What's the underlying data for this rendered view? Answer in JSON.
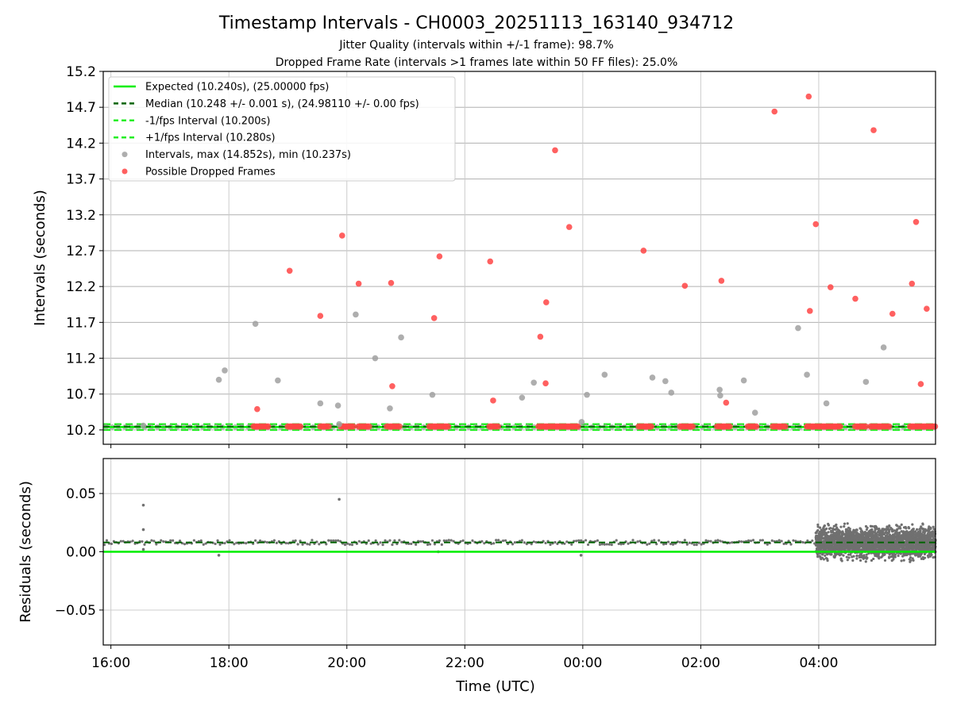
{
  "title": "Timestamp Intervals - CH0003_20251113_163140_934712",
  "subtitle_jitter": "Jitter Quality (intervals within +/-1 frame): 98.7%",
  "subtitle_dropped": "Dropped Frame Rate (intervals >1 frames late within 50 FF files): 25.0%",
  "colors": {
    "expected": "#00ee00",
    "median": "#006400",
    "interval_fps": "#22ee22",
    "normal_points": "#a0a0a0",
    "dropped_points": "#ff4444",
    "residual_points": "#707070",
    "grid": "#b0b0b0"
  },
  "chart_data": [
    {
      "type": "scatter",
      "panel": "top",
      "ylabel": "Intervals (seconds)",
      "ylim": [
        10.0,
        15.2
      ],
      "yticks": [
        "10.2",
        "10.7",
        "11.2",
        "11.7",
        "12.2",
        "12.7",
        "13.2",
        "13.7",
        "14.2",
        "14.7",
        "15.2"
      ],
      "xlim_hours": [
        15.87,
        29.98
      ],
      "grid": true,
      "legend_position": "upper-left",
      "legend": [
        "Expected (10.240s), (25.00000 fps)",
        "Median (10.248 +/- 0.001 s), (24.98110 +/- 0.00 fps)",
        "-1/fps Interval (10.200s)",
        "+1/fps Interval (10.280s)",
        "Intervals, max (14.852s), min (10.237s)",
        "Possible Dropped Frames"
      ],
      "reference_lines": {
        "expected": 10.24,
        "median": 10.248,
        "minus_one_frame": 10.2,
        "plus_one_frame": 10.28
      },
      "series": [
        {
          "name": "Intervals, max (14.852s), min (10.237s)",
          "points": [
            [
              16.55,
              10.26
            ],
            [
              17.83,
              10.9
            ],
            [
              17.93,
              11.03
            ],
            [
              18.45,
              11.68
            ],
            [
              18.83,
              10.89
            ],
            [
              19.55,
              10.57
            ],
            [
              19.85,
              10.54
            ],
            [
              19.87,
              10.28
            ],
            [
              20.15,
              11.81
            ],
            [
              20.48,
              11.2
            ],
            [
              20.73,
              10.5
            ],
            [
              20.92,
              11.49
            ],
            [
              21.45,
              10.69
            ],
            [
              22.97,
              10.65
            ],
            [
              23.17,
              10.86
            ],
            [
              23.98,
              10.31
            ],
            [
              24.07,
              10.69
            ],
            [
              24.37,
              10.97
            ],
            [
              25.18,
              10.93
            ],
            [
              25.4,
              10.88
            ],
            [
              25.5,
              10.72
            ],
            [
              26.32,
              10.76
            ],
            [
              26.33,
              10.68
            ],
            [
              26.73,
              10.89
            ],
            [
              26.92,
              10.44
            ],
            [
              27.65,
              11.62
            ],
            [
              27.8,
              10.97
            ],
            [
              28.13,
              10.57
            ],
            [
              28.8,
              10.87
            ],
            [
              29.1,
              11.35
            ]
          ]
        },
        {
          "name": "Possible Dropped Frames",
          "points": [
            [
              18.48,
              10.49
            ],
            [
              19.03,
              12.42
            ],
            [
              19.55,
              11.79
            ],
            [
              19.92,
              12.91
            ],
            [
              20.2,
              12.24
            ],
            [
              20.75,
              12.25
            ],
            [
              20.77,
              10.81
            ],
            [
              21.48,
              11.76
            ],
            [
              21.57,
              12.62
            ],
            [
              22.43,
              12.55
            ],
            [
              22.48,
              10.61
            ],
            [
              23.28,
              11.5
            ],
            [
              23.37,
              10.85
            ],
            [
              23.38,
              11.98
            ],
            [
              23.53,
              14.1
            ],
            [
              23.77,
              13.03
            ],
            [
              25.03,
              12.7
            ],
            [
              25.73,
              12.21
            ],
            [
              26.35,
              12.28
            ],
            [
              26.43,
              10.58
            ],
            [
              27.25,
              14.64
            ],
            [
              27.83,
              14.85
            ],
            [
              27.85,
              11.86
            ],
            [
              27.95,
              13.07
            ],
            [
              28.2,
              12.19
            ],
            [
              28.62,
              12.03
            ],
            [
              28.93,
              14.38
            ],
            [
              29.25,
              11.82
            ],
            [
              29.58,
              12.24
            ],
            [
              29.65,
              13.1
            ],
            [
              29.73,
              10.84
            ],
            [
              29.83,
              11.89
            ]
          ]
        }
      ],
      "dropped_frame_clusters_at_baseline_hours": [
        [
          18.42,
          18.68
        ],
        [
          19.0,
          19.22
        ],
        [
          19.55,
          19.72
        ],
        [
          19.9,
          20.12
        ],
        [
          20.2,
          20.38
        ],
        [
          20.68,
          20.9
        ],
        [
          21.4,
          21.72
        ],
        [
          22.42,
          22.58
        ],
        [
          23.25,
          23.95
        ],
        [
          24.95,
          25.17
        ],
        [
          25.65,
          25.87
        ],
        [
          26.28,
          26.52
        ],
        [
          26.8,
          26.97
        ],
        [
          27.22,
          27.45
        ],
        [
          27.8,
          28.37
        ],
        [
          28.62,
          28.82
        ],
        [
          28.88,
          29.1
        ],
        [
          29.12,
          29.22
        ],
        [
          29.55,
          29.98
        ]
      ]
    },
    {
      "type": "scatter",
      "panel": "bottom",
      "ylabel": "Residuals (seconds)",
      "xlabel": "Time (UTC)",
      "ylim": [
        -0.08,
        0.08
      ],
      "yticks": [
        "0.05",
        "0.00",
        "−0.05"
      ],
      "xticks": [
        "16:00",
        "18:00",
        "20:00",
        "22:00",
        "00:00",
        "02:00",
        "04:00"
      ],
      "xlim_hours": [
        15.87,
        29.98
      ],
      "grid": true,
      "reference_lines": {
        "expected_residual": 0.0,
        "median_residual": 0.008
      },
      "series": [
        {
          "name": "residuals",
          "outliers": [
            [
              16.55,
              0.04
            ],
            [
              16.55,
              0.019
            ],
            [
              16.55,
              0.002
            ],
            [
              17.83,
              -0.003
            ],
            [
              19.87,
              0.045
            ],
            [
              21.55,
              0.0
            ],
            [
              23.97,
              -0.003
            ]
          ],
          "dense_region_hours": [
            27.95,
            29.98
          ],
          "baseline_residual": 0.008
        }
      ]
    }
  ]
}
